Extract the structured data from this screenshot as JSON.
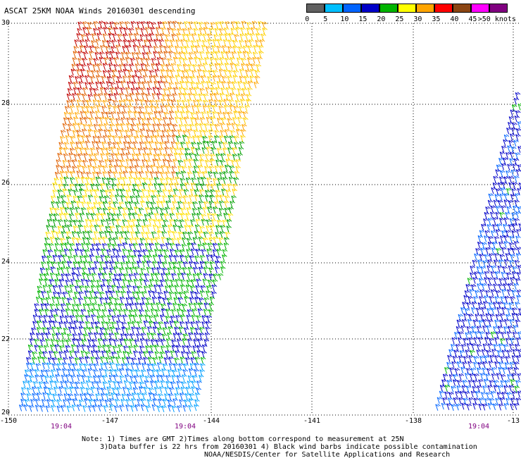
{
  "title": "ASCAT 25KM NOAA Winds 20160301 descending",
  "legend": {
    "labels": [
      "0",
      "5",
      "10",
      "15",
      "20",
      "25",
      "30",
      "35",
      "40",
      "45",
      ">50 knots"
    ],
    "colors": [
      "#606060",
      "#00bfff",
      "#0064ff",
      "#0000c8",
      "#00b400",
      "#ffff00",
      "#ffa500",
      "#ff0000",
      "#8b4513",
      "#ff00ff",
      "#800080"
    ]
  },
  "axes": {
    "lat_labels": [
      "30",
      "28",
      "26",
      "24",
      "22",
      "20"
    ],
    "lon_labels": [
      "-150",
      "-147",
      "-144",
      "-141",
      "-138",
      "-13"
    ]
  },
  "times": [
    "19:04",
    "19:04",
    "19:04"
  ],
  "notes": {
    "line1": "Note: 1) Times are GMT 2)Times along bottom correspond to measurement at 25N",
    "line2": "3)Data buffer is 22 hrs from 20160301 4) Black wind barbs indicate possible contamination",
    "line3": "NOAA/NESDIS/Center for Satellite Applications and Research"
  }
}
